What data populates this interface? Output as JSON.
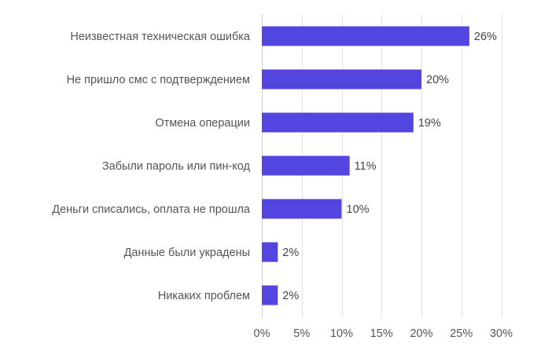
{
  "chart_data": {
    "type": "bar",
    "orientation": "horizontal",
    "categories": [
      "Неизвестная техническая ошибка",
      "Не пришло смс с подтверждением",
      "Отмена операции",
      "Забыли пароль или пин-код",
      "Деньги списались, оплата не прошла",
      "Данные были украдены",
      "Никаких проблем"
    ],
    "values": [
      26,
      20,
      19,
      11,
      10,
      2,
      2
    ],
    "data_labels": [
      "26%",
      "20%",
      "19%",
      "11%",
      "10%",
      "2%",
      "2%"
    ],
    "xlim": [
      0,
      30
    ],
    "xticks": [
      0,
      5,
      10,
      15,
      20,
      25,
      30
    ],
    "xtick_labels": [
      "0%",
      "5%",
      "10%",
      "15%",
      "20%",
      "25%",
      "30%"
    ],
    "title": "",
    "xlabel": "",
    "ylabel": "",
    "grid": "vertical",
    "legend": "none",
    "bar_color": "#5346e0"
  }
}
